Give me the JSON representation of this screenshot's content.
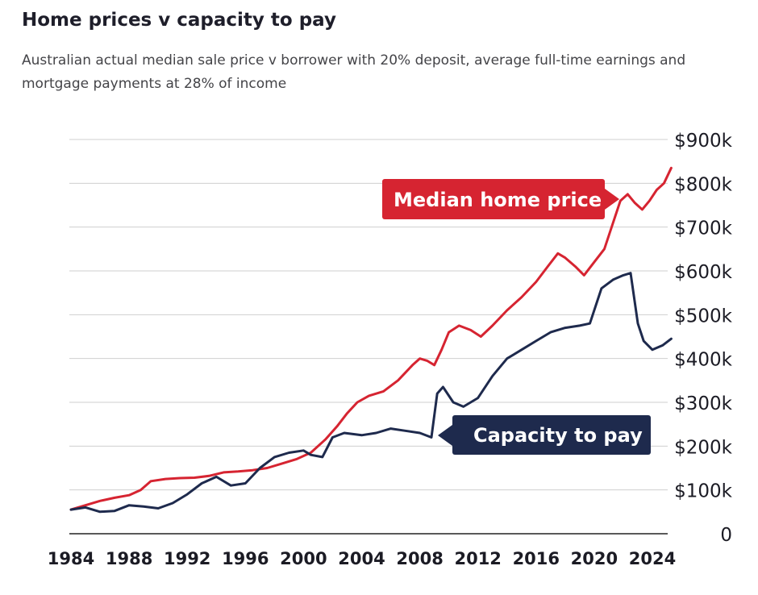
{
  "chart_data": {
    "type": "line",
    "title": "Home prices v capacity to pay",
    "subtitle": "Australian actual median sale price v borrower with 20% deposit, average full-time earnings and mortgage payments at 28% of income",
    "xlabel": "",
    "ylabel": "",
    "xlim": [
      1984,
      2025.5
    ],
    "ylim": [
      0,
      900000
    ],
    "x_ticks": [
      1984,
      1988,
      1992,
      1996,
      2000,
      2004,
      2008,
      2012,
      2016,
      2020,
      2024
    ],
    "x_tick_labels": [
      "1984",
      "1988",
      "1992",
      "1996",
      "2000",
      "2004",
      "2008",
      "2012",
      "2016",
      "2020",
      "2024"
    ],
    "y_ticks": [
      0,
      100000,
      200000,
      300000,
      400000,
      500000,
      600000,
      700000,
      800000,
      900000
    ],
    "y_tick_labels": [
      "0",
      "$100k",
      "$200k",
      "$300k",
      "$400k",
      "$500k",
      "$600k",
      "$700k",
      "$800k",
      "$900k"
    ],
    "grid": true,
    "colors": {
      "median": "#d62431",
      "capacity": "#1e2a4d",
      "grid": "#cfcfcf",
      "axis": "#222222"
    },
    "series": [
      {
        "name": "Median home price",
        "points": [
          [
            1984.0,
            55000
          ],
          [
            1985.0,
            65000
          ],
          [
            1986.0,
            75000
          ],
          [
            1987.0,
            82000
          ],
          [
            1988.0,
            88000
          ],
          [
            1988.8,
            100000
          ],
          [
            1989.5,
            120000
          ],
          [
            1990.5,
            125000
          ],
          [
            1991.5,
            127000
          ],
          [
            1992.5,
            128000
          ],
          [
            1993.5,
            132000
          ],
          [
            1994.5,
            140000
          ],
          [
            1995.5,
            142000
          ],
          [
            1996.5,
            145000
          ],
          [
            1997.5,
            150000
          ],
          [
            1998.5,
            160000
          ],
          [
            1999.5,
            170000
          ],
          [
            2000.5,
            185000
          ],
          [
            2001.5,
            215000
          ],
          [
            2002.3,
            245000
          ],
          [
            2003.0,
            275000
          ],
          [
            2003.7,
            300000
          ],
          [
            2004.5,
            315000
          ],
          [
            2005.5,
            325000
          ],
          [
            2006.5,
            350000
          ],
          [
            2007.5,
            385000
          ],
          [
            2008.0,
            400000
          ],
          [
            2008.5,
            395000
          ],
          [
            2009.0,
            385000
          ],
          [
            2009.5,
            420000
          ],
          [
            2010.0,
            460000
          ],
          [
            2010.7,
            475000
          ],
          [
            2011.5,
            465000
          ],
          [
            2012.2,
            450000
          ],
          [
            2013.0,
            475000
          ],
          [
            2014.0,
            510000
          ],
          [
            2015.0,
            540000
          ],
          [
            2016.0,
            575000
          ],
          [
            2016.8,
            610000
          ],
          [
            2017.5,
            640000
          ],
          [
            2018.0,
            630000
          ],
          [
            2018.7,
            610000
          ],
          [
            2019.3,
            590000
          ],
          [
            2020.0,
            620000
          ],
          [
            2020.7,
            650000
          ],
          [
            2021.3,
            710000
          ],
          [
            2021.8,
            760000
          ],
          [
            2022.3,
            775000
          ],
          [
            2022.8,
            755000
          ],
          [
            2023.3,
            740000
          ],
          [
            2023.8,
            760000
          ],
          [
            2024.3,
            785000
          ],
          [
            2024.8,
            800000
          ],
          [
            2025.3,
            835000
          ]
        ]
      },
      {
        "name": "Capacity to pay",
        "points": [
          [
            1984.0,
            55000
          ],
          [
            1985.0,
            60000
          ],
          [
            1986.0,
            50000
          ],
          [
            1987.0,
            52000
          ],
          [
            1988.0,
            65000
          ],
          [
            1989.0,
            62000
          ],
          [
            1990.0,
            58000
          ],
          [
            1991.0,
            70000
          ],
          [
            1992.0,
            90000
          ],
          [
            1993.0,
            115000
          ],
          [
            1994.0,
            130000
          ],
          [
            1995.0,
            110000
          ],
          [
            1996.0,
            115000
          ],
          [
            1997.0,
            150000
          ],
          [
            1998.0,
            175000
          ],
          [
            1999.0,
            185000
          ],
          [
            2000.0,
            190000
          ],
          [
            2000.5,
            180000
          ],
          [
            2001.3,
            175000
          ],
          [
            2002.0,
            220000
          ],
          [
            2002.8,
            230000
          ],
          [
            2004.0,
            225000
          ],
          [
            2005.0,
            230000
          ],
          [
            2006.0,
            240000
          ],
          [
            2007.0,
            235000
          ],
          [
            2008.0,
            230000
          ],
          [
            2008.8,
            220000
          ],
          [
            2009.2,
            320000
          ],
          [
            2009.6,
            335000
          ],
          [
            2010.3,
            300000
          ],
          [
            2011.0,
            290000
          ],
          [
            2012.0,
            310000
          ],
          [
            2013.0,
            360000
          ],
          [
            2014.0,
            400000
          ],
          [
            2015.0,
            420000
          ],
          [
            2016.0,
            440000
          ],
          [
            2017.0,
            460000
          ],
          [
            2018.0,
            470000
          ],
          [
            2019.0,
            475000
          ],
          [
            2019.7,
            480000
          ],
          [
            2020.5,
            560000
          ],
          [
            2021.3,
            580000
          ],
          [
            2022.0,
            590000
          ],
          [
            2022.5,
            595000
          ],
          [
            2023.0,
            480000
          ],
          [
            2023.4,
            440000
          ],
          [
            2024.0,
            420000
          ],
          [
            2024.7,
            430000
          ],
          [
            2025.3,
            445000
          ]
        ]
      }
    ]
  }
}
